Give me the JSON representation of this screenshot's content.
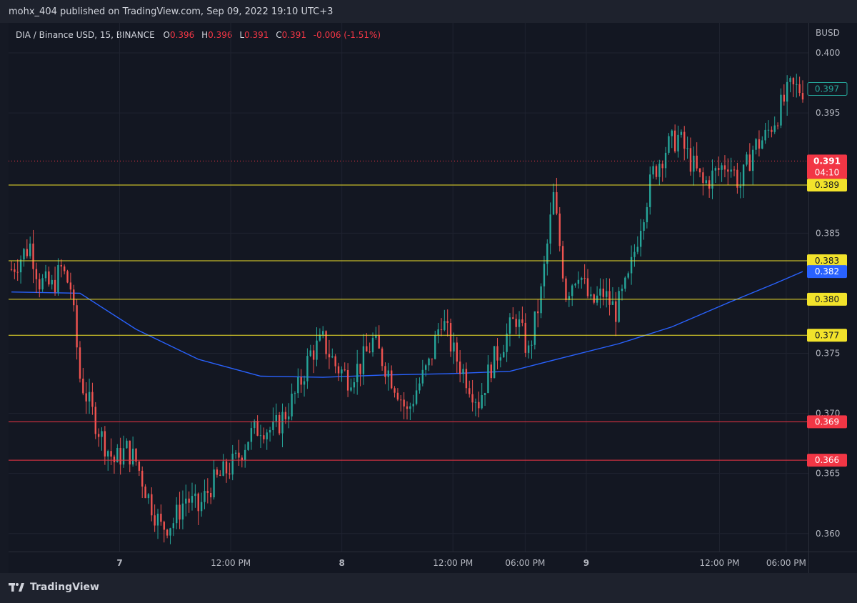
{
  "header": {
    "published": "mohx_404 published on TradingView.com, Sep 09, 2022 19:10 UTC+3"
  },
  "legend": {
    "symbol": "DIA / Binance USD, 15, BINANCE",
    "o_label": "O",
    "o_value": "0.396",
    "h_label": "H",
    "h_value": "0.396",
    "l_label": "L",
    "l_value": "0.391",
    "c_label": "C",
    "c_value": "0.391",
    "change": "-0.006 (-1.51%)"
  },
  "brand": {
    "name": "TradingView",
    "logo": "tradingview-logo-icon"
  },
  "colors": {
    "up": "#26a69a",
    "down": "#ef5350",
    "ma": "#2962ff",
    "support": "#f23645",
    "resistance": "#f2e32b",
    "last": "#f23645"
  },
  "chart_data": {
    "type": "candlestick",
    "currency": "BUSD",
    "ylim": [
      0.3585,
      0.4025
    ],
    "y_ticks": [
      "0.400",
      "0.395",
      "0.385",
      "0.375",
      "0.370",
      "0.365",
      "0.360"
    ],
    "x_ticks": [
      {
        "label": "7",
        "bold": true,
        "x": 0.1
      },
      {
        "label": "12:00 PM",
        "x": 0.2
      },
      {
        "label": "8",
        "bold": true,
        "x": 0.3
      },
      {
        "label": "12:00 PM",
        "x": 0.4
      },
      {
        "label": "06:00 PM",
        "x": 0.465
      },
      {
        "label": "9",
        "bold": true,
        "x": 0.52
      },
      {
        "label": "12:00 PM",
        "x": 0.64
      },
      {
        "label": "06:00 PM",
        "x": 0.7
      }
    ],
    "x_range": [
      0,
      0.72
    ],
    "levels": [
      {
        "value": 0.389,
        "label": "0.389",
        "kind": "resistance"
      },
      {
        "value": 0.3827,
        "label": "0.383",
        "kind": "resistance"
      },
      {
        "value": 0.3795,
        "label": "0.380",
        "kind": "resistance"
      },
      {
        "value": 0.3765,
        "label": "0.377",
        "kind": "resistance"
      },
      {
        "value": 0.3693,
        "label": "0.369",
        "kind": "support"
      },
      {
        "value": 0.3661,
        "label": "0.366",
        "kind": "support"
      }
    ],
    "last_price": {
      "value": 0.391,
      "label": "0.391",
      "countdown": "04:10"
    },
    "ma_price": {
      "value": 0.3818,
      "label": "0.382"
    },
    "current_price": {
      "value": 0.397,
      "label": "0.397"
    },
    "candle_waypoints": [
      [
        0,
        0.382
      ],
      [
        6,
        0.384
      ],
      [
        9,
        0.381
      ],
      [
        13,
        0.3805
      ],
      [
        16,
        0.382
      ],
      [
        19,
        0.3805
      ],
      [
        22,
        0.373
      ],
      [
        26,
        0.37
      ],
      [
        29,
        0.368
      ],
      [
        33,
        0.366
      ],
      [
        37,
        0.367
      ],
      [
        40,
        0.366
      ],
      [
        44,
        0.363
      ],
      [
        48,
        0.3605
      ],
      [
        52,
        0.361
      ],
      [
        56,
        0.363
      ],
      [
        60,
        0.362
      ],
      [
        64,
        0.364
      ],
      [
        68,
        0.365
      ],
      [
        72,
        0.366
      ],
      [
        76,
        0.368
      ],
      [
        80,
        0.369
      ],
      [
        84,
        0.3685
      ],
      [
        88,
        0.37
      ],
      [
        92,
        0.372
      ],
      [
        96,
        0.375
      ],
      [
        100,
        0.376
      ],
      [
        104,
        0.374
      ],
      [
        108,
        0.373
      ],
      [
        112,
        0.374
      ],
      [
        116,
        0.376
      ],
      [
        120,
        0.374
      ],
      [
        124,
        0.372
      ],
      [
        127,
        0.37
      ],
      [
        130,
        0.372
      ],
      [
        134,
        0.374
      ],
      [
        138,
        0.378
      ],
      [
        142,
        0.375
      ],
      [
        146,
        0.373
      ],
      [
        150,
        0.371
      ],
      [
        154,
        0.374
      ],
      [
        158,
        0.376
      ],
      [
        162,
        0.378
      ],
      [
        166,
        0.375
      ],
      [
        170,
        0.38
      ],
      [
        174,
        0.388
      ],
      [
        178,
        0.38
      ],
      [
        182,
        0.382
      ],
      [
        186,
        0.379
      ],
      [
        190,
        0.38
      ],
      [
        194,
        0.3785
      ],
      [
        198,
        0.381
      ],
      [
        202,
        0.386
      ],
      [
        206,
        0.39
      ],
      [
        210,
        0.392
      ],
      [
        214,
        0.393
      ],
      [
        218,
        0.391
      ],
      [
        222,
        0.389
      ],
      [
        226,
        0.39
      ],
      [
        230,
        0.391
      ],
      [
        234,
        0.389
      ],
      [
        238,
        0.392
      ],
      [
        242,
        0.393
      ],
      [
        246,
        0.395
      ],
      [
        250,
        0.397
      ],
      [
        254,
        0.397
      ]
    ],
    "ma_points": [
      [
        0,
        0.3801
      ],
      [
        22,
        0.38
      ],
      [
        40,
        0.377
      ],
      [
        60,
        0.3745
      ],
      [
        80,
        0.3731
      ],
      [
        100,
        0.373
      ],
      [
        120,
        0.3732
      ],
      [
        140,
        0.3733
      ],
      [
        160,
        0.3735
      ],
      [
        175,
        0.3745
      ],
      [
        195,
        0.3758
      ],
      [
        212,
        0.3772
      ],
      [
        230,
        0.3792
      ],
      [
        245,
        0.3808
      ],
      [
        254,
        0.3818
      ]
    ]
  }
}
